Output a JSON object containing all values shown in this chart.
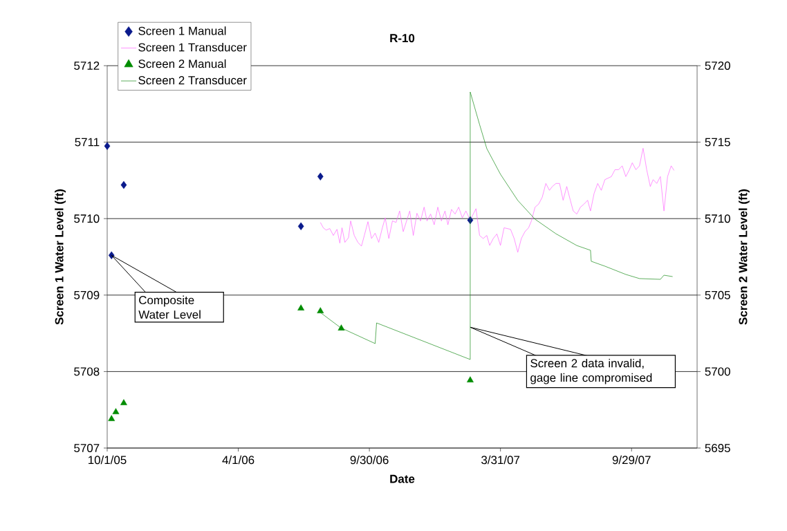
{
  "chart_data": {
    "type": "line",
    "title": "R-10",
    "xlabel": "Date",
    "ylabel": "Screen 1 Water Level (ft)",
    "y2label": "Screen 2 Water Level (ft)",
    "xlim": [
      "2005-10-01",
      "2007-12-29"
    ],
    "xticks": [
      {
        "value": "2005-10-01",
        "label": "10/1/05"
      },
      {
        "value": "2006-04-01",
        "label": "4/1/06"
      },
      {
        "value": "2006-09-30",
        "label": "9/30/06"
      },
      {
        "value": "2007-03-31",
        "label": "3/31/07"
      },
      {
        "value": "2007-09-29",
        "label": "9/29/07"
      }
    ],
    "ylim": [
      5707,
      5712
    ],
    "yticks": [
      5707,
      5708,
      5709,
      5710,
      5711,
      5712
    ],
    "y2lim": [
      5695,
      5720
    ],
    "y2ticks": [
      5695,
      5700,
      5705,
      5710,
      5715,
      5720
    ],
    "grid": "y",
    "legend": "top left",
    "series": [
      {
        "name": "Screen 1 Manual",
        "type": "scatter",
        "marker": "diamond",
        "color": "#0a1a8c",
        "x": [
          "2005-10-01",
          "2005-10-07",
          "2005-10-24",
          "2006-06-27",
          "2006-07-24",
          "2007-02-17"
        ],
        "values": [
          5710.95,
          5709.52,
          5710.44,
          5709.9,
          5710.55,
          5709.98
        ]
      },
      {
        "name": "Screen 1 Transducer",
        "marker": "none",
        "color": "#ff66ff",
        "x": [
          "2006-07-24",
          "2006-07-28",
          "2006-08-01",
          "2006-08-06",
          "2006-08-11",
          "2006-08-16",
          "2006-08-20",
          "2006-08-23",
          "2006-08-27",
          "2006-09-01",
          "2006-09-04",
          "2006-09-09",
          "2006-09-14",
          "2006-09-19",
          "2006-09-23",
          "2006-09-28",
          "2006-10-03",
          "2006-10-08",
          "2006-10-13",
          "2006-10-18",
          "2006-10-22",
          "2006-10-27",
          "2006-11-01",
          "2006-11-06",
          "2006-11-11",
          "2006-11-16",
          "2006-11-20",
          "2006-11-25",
          "2006-11-30",
          "2006-12-05",
          "2006-12-10",
          "2006-12-15",
          "2006-12-19",
          "2006-12-24",
          "2006-12-29",
          "2007-01-03",
          "2007-01-08",
          "2007-01-13",
          "2007-01-17",
          "2007-01-22",
          "2007-01-27",
          "2007-02-01",
          "2007-02-06",
          "2007-02-11",
          "2007-02-17",
          "2007-02-25",
          "2007-03-02",
          "2007-03-07",
          "2007-03-12",
          "2007-03-16",
          "2007-03-21",
          "2007-03-26",
          "2007-03-31",
          "2007-04-05",
          "2007-04-14",
          "2007-04-19",
          "2007-04-24",
          "2007-04-29",
          "2007-05-04",
          "2007-05-09",
          "2007-05-13",
          "2007-05-18",
          "2007-05-23",
          "2007-05-28",
          "2007-06-02",
          "2007-06-07",
          "2007-06-11",
          "2007-06-16",
          "2007-06-21",
          "2007-06-26",
          "2007-07-01",
          "2007-07-06",
          "2007-07-10",
          "2007-07-15",
          "2007-07-20",
          "2007-07-25",
          "2007-07-30",
          "2007-08-03",
          "2007-08-08",
          "2007-08-13",
          "2007-08-18",
          "2007-08-23",
          "2007-09-01",
          "2007-09-06",
          "2007-09-11",
          "2007-09-16",
          "2007-09-21",
          "2007-09-26",
          "2007-09-30",
          "2007-10-05",
          "2007-10-10",
          "2007-10-15",
          "2007-10-20",
          "2007-10-25",
          "2007-10-29",
          "2007-11-03",
          "2007-11-08",
          "2007-11-13",
          "2007-11-18",
          "2007-11-23",
          "2007-11-27"
        ],
        "values": [
          5709.95,
          5709.88,
          5709.85,
          5709.87,
          5709.78,
          5709.86,
          5709.68,
          5709.88,
          5709.69,
          5709.75,
          5709.97,
          5709.78,
          5709.69,
          5709.64,
          5709.78,
          5709.96,
          5709.74,
          5709.81,
          5709.69,
          5709.88,
          5710.01,
          5709.74,
          5709.97,
          5709.95,
          5710.1,
          5709.83,
          5709.95,
          5710.1,
          5709.78,
          5710.07,
          5709.97,
          5710.15,
          5709.97,
          5710.06,
          5709.92,
          5710.15,
          5709.97,
          5710.1,
          5709.92,
          5710.12,
          5710.06,
          5710.15,
          5710.01,
          5710.1,
          5709.98,
          5710.13,
          5709.78,
          5709.74,
          5709.78,
          5709.65,
          5709.74,
          5709.8,
          5709.65,
          5709.88,
          5709.86,
          5709.74,
          5709.56,
          5709.74,
          5709.83,
          5709.88,
          5709.97,
          5710.15,
          5710.19,
          5710.28,
          5710.46,
          5710.37,
          5710.42,
          5710.46,
          5710.46,
          5710.24,
          5710.42,
          5710.24,
          5710.1,
          5710.06,
          5710.15,
          5710.19,
          5710.24,
          5710.1,
          5710.33,
          5710.46,
          5710.37,
          5710.51,
          5710.55,
          5710.64,
          5710.64,
          5710.69,
          5710.55,
          5710.64,
          5710.73,
          5710.64,
          5710.69,
          5710.92,
          5710.64,
          5710.42,
          5710.51,
          5710.46,
          5710.55,
          5710.1,
          5710.55,
          5710.69,
          5710.63
        ]
      },
      {
        "name": "Screen 2 Manual",
        "type": "scatter",
        "marker": "triangle",
        "color": "#008c00",
        "axis": "y2",
        "x": [
          "2005-10-07",
          "2005-10-13",
          "2005-10-24",
          "2006-06-27",
          "2006-07-24",
          "2006-08-22",
          "2007-02-17"
        ],
        "values": [
          5696.9,
          5697.35,
          5697.94,
          5704.13,
          5703.95,
          5702.82,
          5699.43
        ]
      },
      {
        "name": "Screen 2 Transducer",
        "marker": "none",
        "color": "#1a8c1a",
        "axis": "y2",
        "x": [
          "2006-07-24",
          "2006-08-21",
          "2006-10-08",
          "2006-10-10",
          "2007-02-17",
          "2007-02-17",
          "2007-03-02",
          "2007-03-12",
          "2007-03-31",
          "2007-04-24",
          "2007-05-18",
          "2007-06-16",
          "2007-07-15",
          "2007-08-03",
          "2007-08-04",
          "2007-08-23",
          "2007-09-21",
          "2007-10-10",
          "2007-11-08",
          "2007-11-13",
          "2007-11-25"
        ],
        "values": [
          5703.86,
          5702.87,
          5701.83,
          5703.18,
          5700.79,
          5718.28,
          5716.15,
          5714.58,
          5712.9,
          5711.19,
          5709.96,
          5709.01,
          5708.24,
          5707.93,
          5707.21,
          5706.89,
          5706.35,
          5706.08,
          5706.03,
          5706.3,
          5706.21
        ]
      }
    ],
    "annotations": [
      {
        "text": "Composite Water Level",
        "x": "2005-10-07",
        "y": 5709.52
      },
      {
        "text": "Screen 2 data invalid, gage line compromised",
        "x": "2007-02-17",
        "y": 5708.58
      }
    ]
  }
}
